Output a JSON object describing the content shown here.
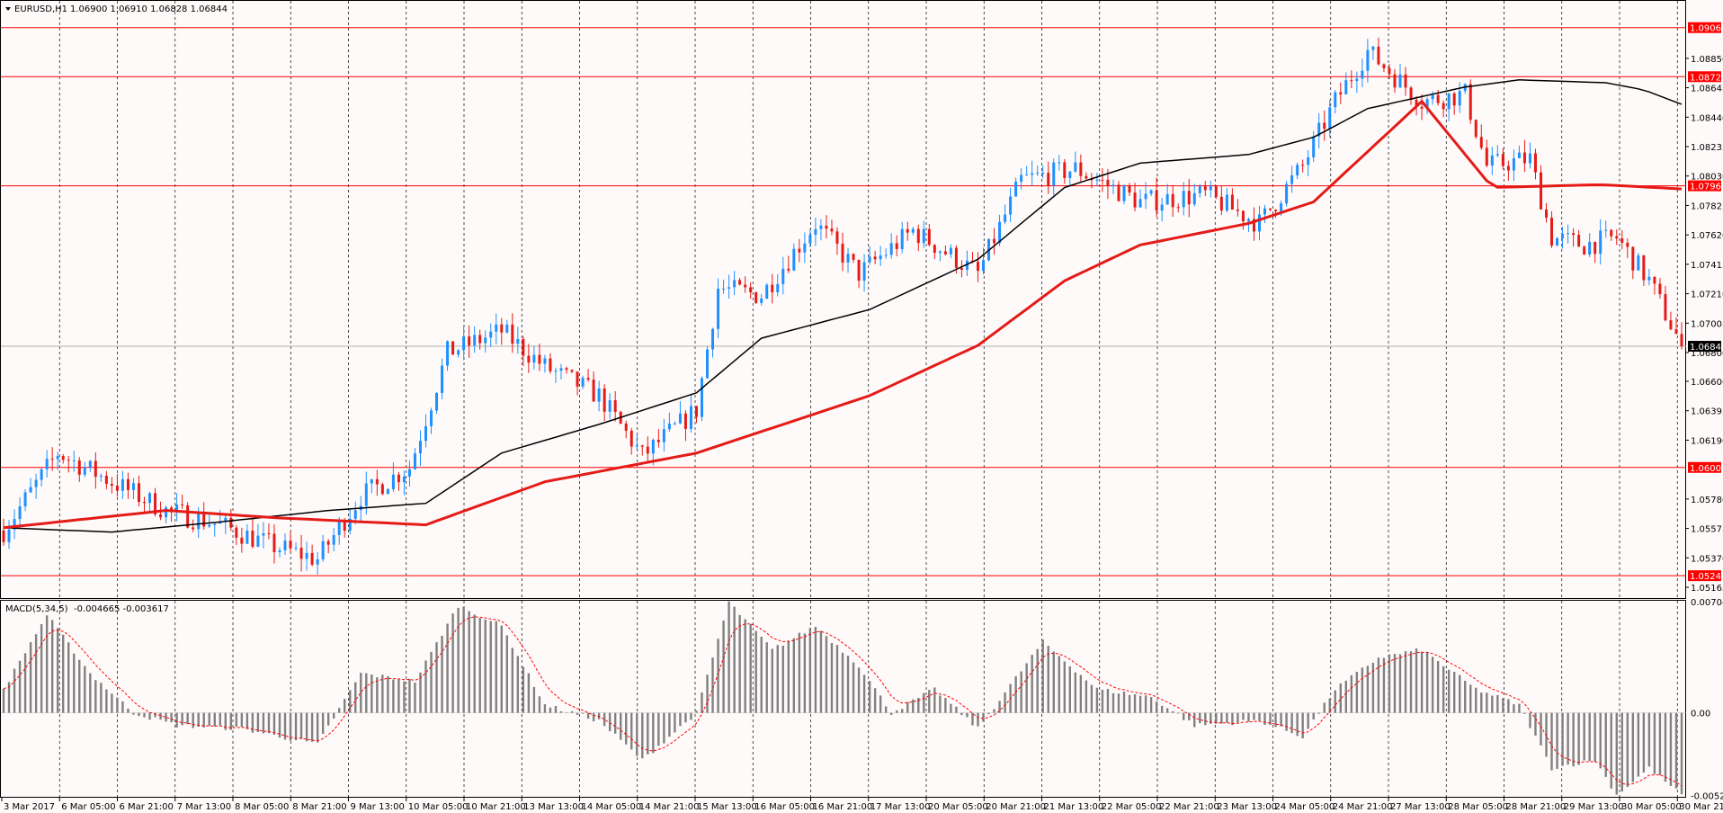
{
  "header": {
    "symbol_label": "EURUSD,H1",
    "ohlc": "1.06900 1.06910 1.06828 1.06844"
  },
  "macd_header": {
    "label": "MACD(5,34,5)",
    "values": "-0.004665 -0.003617"
  },
  "colors": {
    "bull": "#1e90ff",
    "bear": "#e41b17",
    "ma_fast": "#000000",
    "ma_slow": "#e41b17",
    "level": "#ff0000",
    "macd_hist": "#808080",
    "macd_signal": "#ff0000",
    "background": "#fffafa"
  },
  "chart_data": [
    {
      "type": "candlestick",
      "symbol": "EURUSD",
      "timeframe": "H1",
      "ylim": [
        1.0509,
        1.0925
      ],
      "y_ticks": [
        "1.08850",
        "1.08645",
        "1.08440",
        "1.08235",
        "1.08030",
        "1.07825",
        "1.07620",
        "1.07415",
        "1.07210",
        "1.07005",
        "1.06800",
        "1.06600",
        "1.06395",
        "1.06190",
        "1.05780",
        "1.05575",
        "1.05370",
        "1.05165"
      ],
      "current_price": "1.06844",
      "horizontal_levels": [
        "1.09064",
        "1.08722",
        "1.07962",
        "1.06000",
        "1.05246"
      ],
      "x_labels": [
        "3 Mar 2017",
        "6 Mar 05:00",
        "6 Mar 21:00",
        "7 Mar 13:00",
        "8 Mar 05:00",
        "8 Mar 21:00",
        "9 Mar 13:00",
        "10 Mar 05:00",
        "10 Mar 21:00",
        "13 Mar 13:00",
        "14 Mar 05:00",
        "14 Mar 21:00",
        "15 Mar 13:00",
        "16 Mar 05:00",
        "16 Mar 21:00",
        "17 Mar 13:00",
        "20 Mar 05:00",
        "20 Mar 21:00",
        "21 Mar 13:00",
        "22 Mar 05:00",
        "22 Mar 21:00",
        "23 Mar 13:00",
        "24 Mar 05:00",
        "24 Mar 21:00",
        "27 Mar 13:00",
        "28 Mar 05:00",
        "28 Mar 21:00",
        "29 Mar 13:00",
        "30 Mar 05:00",
        "30 Mar 21:00"
      ],
      "close_path": [
        [
          0,
          1.0556
        ],
        [
          10,
          1.061
        ],
        [
          20,
          1.059
        ],
        [
          30,
          1.057
        ],
        [
          40,
          1.056
        ],
        [
          50,
          1.0545
        ],
        [
          58,
          1.0536
        ],
        [
          66,
          1.058
        ],
        [
          75,
          1.06
        ],
        [
          82,
          1.068
        ],
        [
          92,
          1.0695
        ],
        [
          100,
          1.067
        ],
        [
          110,
          1.065
        ],
        [
          118,
          1.0608
        ],
        [
          128,
          1.064
        ],
        [
          132,
          1.0725
        ],
        [
          140,
          1.072
        ],
        [
          150,
          1.077
        ],
        [
          158,
          1.0735
        ],
        [
          168,
          1.0765
        ],
        [
          180,
          1.0735
        ],
        [
          188,
          1.08
        ],
        [
          198,
          1.0808
        ],
        [
          210,
          1.0785
        ],
        [
          222,
          1.079
        ],
        [
          232,
          1.077
        ],
        [
          240,
          1.081
        ],
        [
          246,
          1.0855
        ],
        [
          252,
          1.089
        ],
        [
          262,
          1.0855
        ],
        [
          270,
          1.086
        ],
        [
          274,
          1.081
        ],
        [
          282,
          1.0815
        ],
        [
          286,
          1.076
        ],
        [
          292,
          1.0755
        ],
        [
          298,
          1.076
        ],
        [
          304,
          1.073
        ],
        [
          310,
          1.06844
        ]
      ],
      "moving_averages": [
        {
          "color": "black",
          "points": [
            [
              0,
              1.0558
            ],
            [
              20,
              1.0555
            ],
            [
              40,
              1.0562
            ],
            [
              60,
              1.057
            ],
            [
              78,
              1.0575
            ],
            [
              92,
              1.061
            ],
            [
              110,
              1.063
            ],
            [
              128,
              1.0652
            ],
            [
              140,
              1.069
            ],
            [
              160,
              1.071
            ],
            [
              180,
              1.0745
            ],
            [
              196,
              1.0795
            ],
            [
              210,
              1.0812
            ],
            [
              230,
              1.0818
            ],
            [
              242,
              1.083
            ],
            [
              252,
              1.085
            ],
            [
              270,
              1.0865
            ],
            [
              280,
              1.087
            ],
            [
              296,
              1.0868
            ],
            [
              303,
              1.0863
            ],
            [
              310,
              1.0853
            ]
          ]
        },
        {
          "color": "red",
          "points": [
            [
              0,
              1.0558
            ],
            [
              30,
              1.057
            ],
            [
              50,
              1.0565
            ],
            [
              78,
              1.056
            ],
            [
              100,
              1.059
            ],
            [
              128,
              1.061
            ],
            [
              160,
              1.065
            ],
            [
              180,
              1.0685
            ],
            [
              196,
              1.073
            ],
            [
              210,
              1.0755
            ],
            [
              230,
              1.077
            ],
            [
              242,
              1.0785
            ],
            [
              252,
              1.082
            ],
            [
              262,
              1.0855
            ],
            [
              275,
              1.0795
            ],
            [
              295,
              1.0797
            ],
            [
              310,
              1.0794
            ]
          ]
        }
      ]
    },
    {
      "type": "bar",
      "title": "MACD(5,34,5)",
      "ylim": [
        -0.00532,
        0.0071
      ],
      "y_ticks": [
        "0.007043",
        "0.00",
        "-0.005223"
      ],
      "hist_path": [
        [
          0,
          0.0015
        ],
        [
          8,
          0.0062
        ],
        [
          16,
          0.0025
        ],
        [
          24,
          0.0
        ],
        [
          32,
          -0.0008
        ],
        [
          44,
          -0.001
        ],
        [
          58,
          -0.002
        ],
        [
          66,
          0.0025
        ],
        [
          76,
          0.002
        ],
        [
          84,
          0.0068
        ],
        [
          92,
          0.0055
        ],
        [
          100,
          0.0005
        ],
        [
          110,
          -0.0005
        ],
        [
          118,
          -0.003
        ],
        [
          128,
          0.0
        ],
        [
          134,
          0.007
        ],
        [
          142,
          0.004
        ],
        [
          150,
          0.0055
        ],
        [
          158,
          0.003
        ],
        [
          164,
          0.0
        ],
        [
          172,
          0.0015
        ],
        [
          180,
          -0.001
        ],
        [
          192,
          0.0045
        ],
        [
          202,
          0.0015
        ],
        [
          212,
          0.001
        ],
        [
          220,
          -0.0008
        ],
        [
          232,
          -0.0005
        ],
        [
          240,
          -0.0015
        ],
        [
          246,
          0.0015
        ],
        [
          254,
          0.0035
        ],
        [
          262,
          0.004
        ],
        [
          272,
          0.0015
        ],
        [
          280,
          0.0005
        ],
        [
          286,
          -0.0035
        ],
        [
          294,
          -0.003
        ],
        [
          298,
          -0.0052
        ],
        [
          304,
          -0.0035
        ],
        [
          310,
          -0.0052
        ]
      ]
    }
  ]
}
